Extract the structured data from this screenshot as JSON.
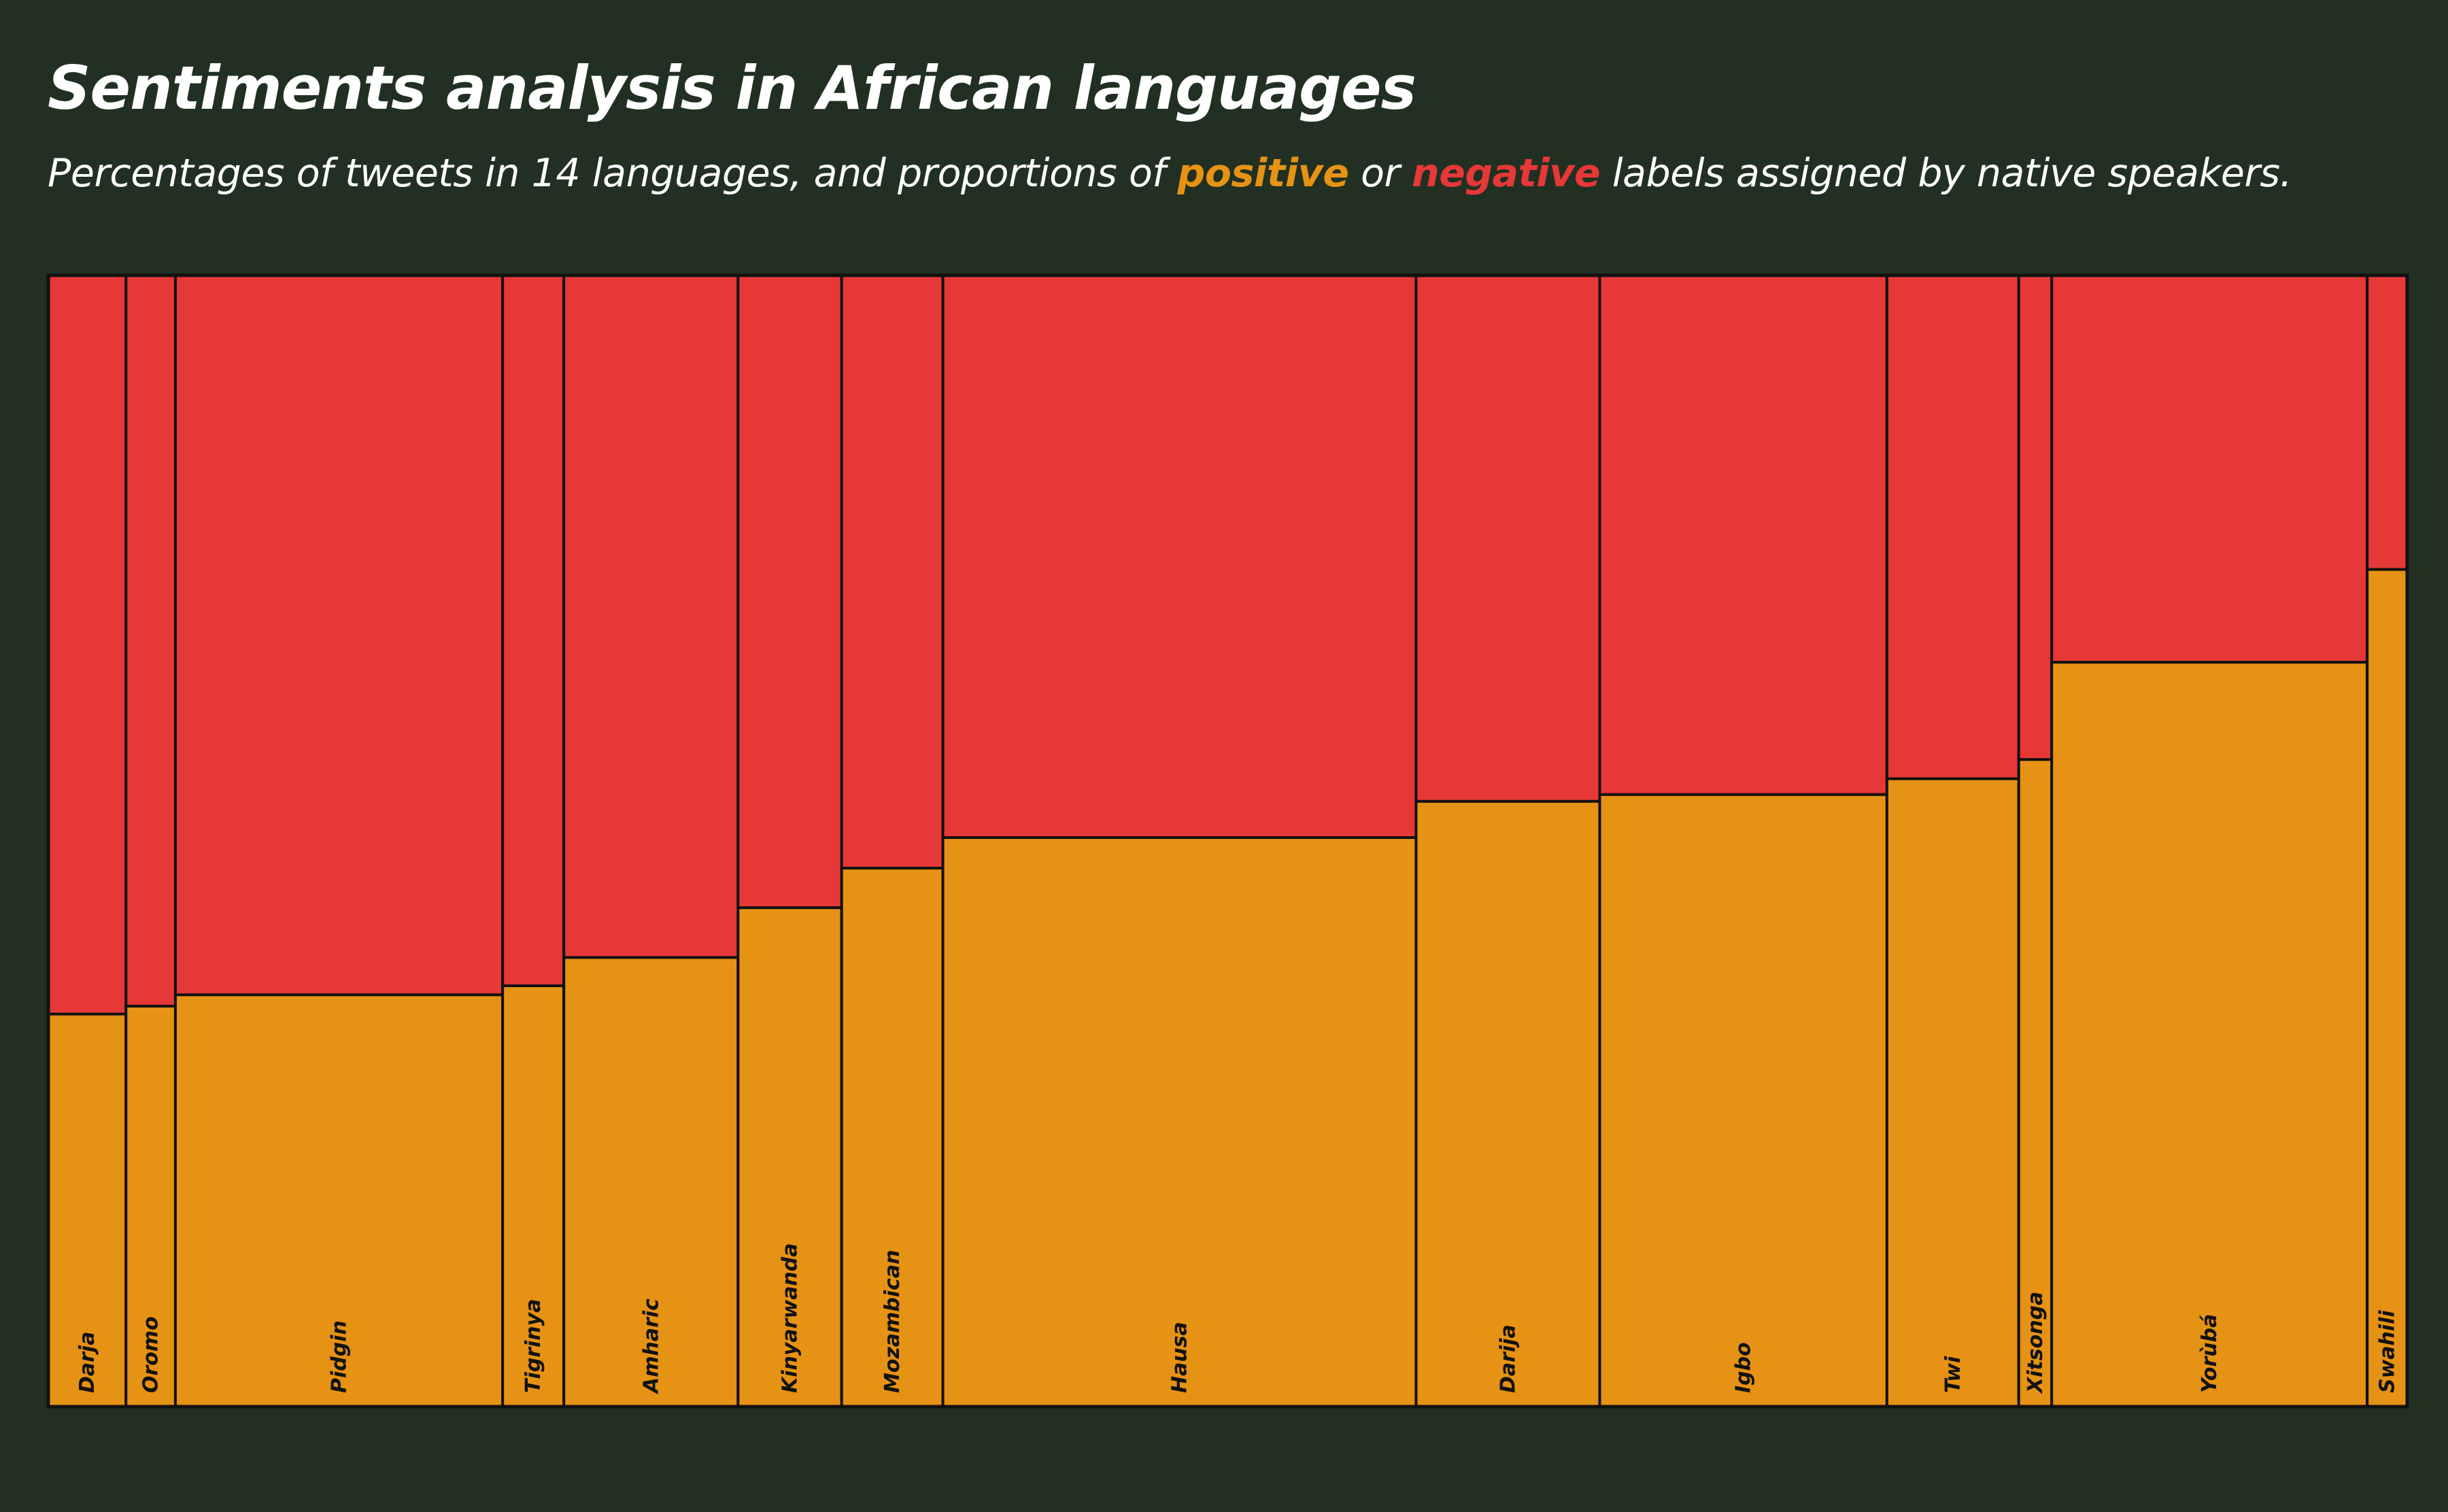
{
  "title": "Sentiments analysis in African languages",
  "subtitle": {
    "before": "Percentages of tweets in 14 languages, and proportions of ",
    "positive_word": "positive",
    "middle": " or ",
    "negative_word": "negative",
    "after": " labels assigned by native speakers."
  },
  "colors": {
    "background": "#213022",
    "positive": "#E69214",
    "negative": "#E73838",
    "border": "#111111",
    "text": "#ffffff"
  },
  "chart_data": {
    "type": "mosaic",
    "description_of_axes": "x = share of tweets per language, y = share of positive (bottom) vs negative (top) labels",
    "series": [
      {
        "name": "positive"
      },
      {
        "name": "negative"
      }
    ],
    "categories": [
      "Darja",
      "Oromo",
      "Pidgin",
      "Tigrinya",
      "Amharic",
      "Kinyarwanda",
      "Mozambican",
      "Hausa",
      "Darija",
      "Igbo",
      "Twi",
      "Xitsonga",
      "Yorùbá",
      "Swahili"
    ],
    "tweet_share_pct": [
      3.3,
      2.1,
      13.9,
      2.6,
      7.4,
      4.4,
      4.3,
      20.1,
      7.8,
      12.2,
      5.6,
      1.4,
      13.4,
      1.7
    ],
    "positive_share_pct": [
      34.7,
      35.4,
      36.4,
      37.2,
      39.7,
      44.1,
      47.6,
      50.3,
      53.5,
      54.1,
      55.5,
      57.2,
      65.8,
      74.0
    ]
  }
}
